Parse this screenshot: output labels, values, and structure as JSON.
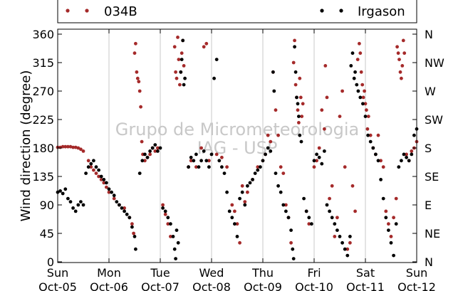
{
  "chart_data": {
    "type": "scatter",
    "title": "",
    "xlabel": "",
    "ylabel": "Wind direction (degree)",
    "ylim": [
      0,
      360
    ],
    "yticks": [
      0,
      45,
      90,
      135,
      180,
      225,
      270,
      315,
      360
    ],
    "right_ticks": [
      {
        "value": 0,
        "label": "N"
      },
      {
        "value": 45,
        "label": "NE"
      },
      {
        "value": 90,
        "label": "E"
      },
      {
        "value": 135,
        "label": "SE"
      },
      {
        "value": 180,
        "label": "S"
      },
      {
        "value": 225,
        "label": "SW"
      },
      {
        "value": 270,
        "label": "W"
      },
      {
        "value": 315,
        "label": "NW"
      },
      {
        "value": 360,
        "label": "N"
      }
    ],
    "xlim": [
      0,
      7
    ],
    "xticks": [
      {
        "day": 0,
        "weekday": "Sun",
        "date": "Oct-05"
      },
      {
        "day": 1,
        "weekday": "Mon",
        "date": "Oct-06"
      },
      {
        "day": 2,
        "weekday": "Tue",
        "date": "Oct-07"
      },
      {
        "day": 3,
        "weekday": "Wed",
        "date": "Oct-08"
      },
      {
        "day": 4,
        "weekday": "Thu",
        "date": "Oct-09"
      },
      {
        "day": 5,
        "weekday": "Fri",
        "date": "Oct-10"
      },
      {
        "day": 6,
        "weekday": "Sat",
        "date": "Oct-11"
      },
      {
        "day": 7,
        "weekday": "Sun",
        "date": "Oct-12"
      }
    ],
    "grid": "vertical",
    "legend_position": "top",
    "watermark": [
      "Grupo de Micrometeorologia",
      "IAG - USP"
    ],
    "series": [
      {
        "name": "034B",
        "color": "#a52a2a",
        "points": [
          [
            0.0,
            181
          ],
          [
            0.05,
            181
          ],
          [
            0.1,
            182
          ],
          [
            0.15,
            182
          ],
          [
            0.2,
            182
          ],
          [
            0.25,
            182
          ],
          [
            0.3,
            181
          ],
          [
            0.35,
            181
          ],
          [
            0.4,
            180
          ],
          [
            0.45,
            178
          ],
          [
            0.5,
            175
          ],
          [
            0.6,
            160
          ],
          [
            0.65,
            150
          ],
          [
            0.7,
            145
          ],
          [
            0.75,
            140
          ],
          [
            0.8,
            135
          ],
          [
            0.85,
            130
          ],
          [
            0.9,
            125
          ],
          [
            0.95,
            118
          ],
          [
            1.0,
            110
          ],
          [
            1.1,
            100
          ],
          [
            1.2,
            90
          ],
          [
            1.3,
            85
          ],
          [
            1.4,
            70
          ],
          [
            1.45,
            60
          ],
          [
            1.48,
            45
          ],
          [
            1.5,
            330
          ],
          [
            1.52,
            345
          ],
          [
            1.54,
            300
          ],
          [
            1.56,
            290
          ],
          [
            1.58,
            285
          ],
          [
            1.6,
            270
          ],
          [
            1.62,
            245
          ],
          [
            1.64,
            190
          ],
          [
            1.66,
            170
          ],
          [
            1.7,
            160
          ],
          [
            1.75,
            165
          ],
          [
            1.8,
            170
          ],
          [
            1.85,
            180
          ],
          [
            1.9,
            175
          ],
          [
            1.95,
            180
          ],
          [
            2.05,
            90
          ],
          [
            2.1,
            75
          ],
          [
            2.15,
            60
          ],
          [
            2.2,
            40
          ],
          [
            2.28,
            340
          ],
          [
            2.3,
            300
          ],
          [
            2.32,
            290
          ],
          [
            2.34,
            355
          ],
          [
            2.36,
            320
          ],
          [
            2.38,
            280
          ],
          [
            2.4,
            300
          ],
          [
            2.42,
            330
          ],
          [
            2.44,
            350
          ],
          [
            2.46,
            310
          ],
          [
            2.55,
            150
          ],
          [
            2.6,
            160
          ],
          [
            2.7,
            150
          ],
          [
            2.8,
            180
          ],
          [
            2.85,
            340
          ],
          [
            2.9,
            345
          ],
          [
            2.95,
            160
          ],
          [
            3.1,
            170
          ],
          [
            3.2,
            165
          ],
          [
            3.3,
            150
          ],
          [
            3.4,
            90
          ],
          [
            3.45,
            80
          ],
          [
            3.5,
            60
          ],
          [
            3.55,
            30
          ],
          [
            3.6,
            120
          ],
          [
            3.65,
            95
          ],
          [
            3.7,
            110
          ],
          [
            3.8,
            130
          ],
          [
            3.9,
            150
          ],
          [
            4.0,
            160
          ],
          [
            4.05,
            170
          ],
          [
            4.1,
            200
          ],
          [
            4.15,
            190
          ],
          [
            4.2,
            300
          ],
          [
            4.25,
            240
          ],
          [
            4.3,
            200
          ],
          [
            4.35,
            150
          ],
          [
            4.4,
            140
          ],
          [
            4.45,
            90
          ],
          [
            4.5,
            70
          ],
          [
            4.55,
            30
          ],
          [
            4.6,
            315
          ],
          [
            4.62,
            350
          ],
          [
            4.64,
            280
          ],
          [
            4.66,
            260
          ],
          [
            4.68,
            240
          ],
          [
            4.7,
            220
          ],
          [
            4.72,
            290
          ],
          [
            4.74,
            260
          ],
          [
            4.76,
            230
          ],
          [
            4.78,
            250
          ],
          [
            4.85,
            80
          ],
          [
            4.9,
            60
          ],
          [
            5.0,
            150
          ],
          [
            5.05,
            160
          ],
          [
            5.1,
            180
          ],
          [
            5.15,
            240
          ],
          [
            5.2,
            210
          ],
          [
            5.22,
            310
          ],
          [
            5.25,
            260
          ],
          [
            5.3,
            100
          ],
          [
            5.35,
            120
          ],
          [
            5.4,
            40
          ],
          [
            5.45,
            70
          ],
          [
            5.5,
            230
          ],
          [
            5.55,
            270
          ],
          [
            5.6,
            150
          ],
          [
            5.65,
            20
          ],
          [
            5.7,
            30
          ],
          [
            5.75,
            120
          ],
          [
            5.8,
            80
          ],
          [
            5.85,
            320
          ],
          [
            5.88,
            345
          ],
          [
            5.9,
            330
          ],
          [
            5.92,
            300
          ],
          [
            5.94,
            280
          ],
          [
            5.96,
            260
          ],
          [
            5.98,
            270
          ],
          [
            6.0,
            250
          ],
          [
            6.02,
            240
          ],
          [
            6.04,
            210
          ],
          [
            6.06,
            230
          ],
          [
            6.1,
            200
          ],
          [
            6.15,
            180
          ],
          [
            6.2,
            170
          ],
          [
            6.25,
            200
          ],
          [
            6.3,
            160
          ],
          [
            6.35,
            150
          ],
          [
            6.4,
            80
          ],
          [
            6.45,
            60
          ],
          [
            6.5,
            40
          ],
          [
            6.55,
            70
          ],
          [
            6.6,
            100
          ],
          [
            6.62,
            340
          ],
          [
            6.64,
            330
          ],
          [
            6.66,
            320
          ],
          [
            6.68,
            300
          ],
          [
            6.7,
            290
          ],
          [
            6.72,
            310
          ],
          [
            6.74,
            350
          ],
          [
            6.76,
            330
          ],
          [
            6.8,
            170
          ],
          [
            6.85,
            160
          ],
          [
            6.9,
            175
          ],
          [
            6.95,
            180
          ],
          [
            7.0,
            190
          ]
        ]
      },
      {
        "name": "Irgason",
        "color": "#000000",
        "points": [
          [
            0.0,
            110
          ],
          [
            0.05,
            112
          ],
          [
            0.1,
            108
          ],
          [
            0.15,
            115
          ],
          [
            0.2,
            100
          ],
          [
            0.25,
            95
          ],
          [
            0.3,
            85
          ],
          [
            0.35,
            80
          ],
          [
            0.4,
            90
          ],
          [
            0.45,
            95
          ],
          [
            0.5,
            90
          ],
          [
            0.55,
            140
          ],
          [
            0.6,
            150
          ],
          [
            0.65,
            155
          ],
          [
            0.7,
            160
          ],
          [
            0.75,
            150
          ],
          [
            0.8,
            145
          ],
          [
            0.85,
            135
          ],
          [
            0.9,
            130
          ],
          [
            0.95,
            125
          ],
          [
            1.0,
            115
          ],
          [
            1.05,
            110
          ],
          [
            1.1,
            105
          ],
          [
            1.15,
            95
          ],
          [
            1.2,
            90
          ],
          [
            1.25,
            85
          ],
          [
            1.3,
            80
          ],
          [
            1.35,
            75
          ],
          [
            1.4,
            70
          ],
          [
            1.45,
            55
          ],
          [
            1.5,
            40
          ],
          [
            1.52,
            20
          ],
          [
            1.6,
            140
          ],
          [
            1.65,
            160
          ],
          [
            1.7,
            170
          ],
          [
            1.75,
            165
          ],
          [
            1.8,
            175
          ],
          [
            1.85,
            180
          ],
          [
            1.9,
            185
          ],
          [
            1.95,
            175
          ],
          [
            2.0,
            180
          ],
          [
            2.05,
            85
          ],
          [
            2.1,
            80
          ],
          [
            2.15,
            70
          ],
          [
            2.2,
            60
          ],
          [
            2.25,
            40
          ],
          [
            2.28,
            20
          ],
          [
            2.3,
            5
          ],
          [
            2.32,
            50
          ],
          [
            2.35,
            30
          ],
          [
            2.4,
            300
          ],
          [
            2.42,
            320
          ],
          [
            2.44,
            350
          ],
          [
            2.46,
            280
          ],
          [
            2.48,
            290
          ],
          [
            2.55,
            150
          ],
          [
            2.6,
            165
          ],
          [
            2.65,
            160
          ],
          [
            2.7,
            170
          ],
          [
            2.75,
            150
          ],
          [
            2.8,
            160
          ],
          [
            2.85,
            175
          ],
          [
            2.9,
            160
          ],
          [
            2.95,
            150
          ],
          [
            3.0,
            170
          ],
          [
            3.05,
            290
          ],
          [
            3.1,
            320
          ],
          [
            3.15,
            160
          ],
          [
            3.2,
            150
          ],
          [
            3.25,
            140
          ],
          [
            3.3,
            110
          ],
          [
            3.35,
            80
          ],
          [
            3.4,
            70
          ],
          [
            3.45,
            60
          ],
          [
            3.5,
            40
          ],
          [
            3.55,
            100
          ],
          [
            3.6,
            110
          ],
          [
            3.65,
            90
          ],
          [
            3.7,
            120
          ],
          [
            3.75,
            125
          ],
          [
            3.8,
            130
          ],
          [
            3.85,
            140
          ],
          [
            3.9,
            145
          ],
          [
            3.95,
            150
          ],
          [
            4.0,
            160
          ],
          [
            4.05,
            170
          ],
          [
            4.1,
            180
          ],
          [
            4.15,
            175
          ],
          [
            4.2,
            300
          ],
          [
            4.22,
            270
          ],
          [
            4.25,
            140
          ],
          [
            4.3,
            120
          ],
          [
            4.35,
            110
          ],
          [
            4.4,
            90
          ],
          [
            4.45,
            80
          ],
          [
            4.5,
            70
          ],
          [
            4.55,
            50
          ],
          [
            4.58,
            20
          ],
          [
            4.6,
            5
          ],
          [
            4.62,
            340
          ],
          [
            4.64,
            300
          ],
          [
            4.66,
            260
          ],
          [
            4.68,
            250
          ],
          [
            4.7,
            230
          ],
          [
            4.72,
            200
          ],
          [
            4.75,
            190
          ],
          [
            4.8,
            100
          ],
          [
            4.85,
            80
          ],
          [
            4.9,
            70
          ],
          [
            4.95,
            60
          ],
          [
            5.0,
            160
          ],
          [
            5.05,
            170
          ],
          [
            5.1,
            165
          ],
          [
            5.15,
            155
          ],
          [
            5.2,
            175
          ],
          [
            5.25,
            90
          ],
          [
            5.3,
            80
          ],
          [
            5.35,
            70
          ],
          [
            5.4,
            60
          ],
          [
            5.45,
            50
          ],
          [
            5.5,
            40
          ],
          [
            5.55,
            30
          ],
          [
            5.6,
            20
          ],
          [
            5.65,
            10
          ],
          [
            5.7,
            40
          ],
          [
            5.72,
            310
          ],
          [
            5.75,
            330
          ],
          [
            5.78,
            290
          ],
          [
            5.8,
            300
          ],
          [
            5.83,
            280
          ],
          [
            5.86,
            270
          ],
          [
            5.9,
            260
          ],
          [
            5.95,
            250
          ],
          [
            6.0,
            230
          ],
          [
            6.05,
            200
          ],
          [
            6.1,
            190
          ],
          [
            6.15,
            180
          ],
          [
            6.2,
            170
          ],
          [
            6.25,
            160
          ],
          [
            6.3,
            130
          ],
          [
            6.35,
            100
          ],
          [
            6.4,
            70
          ],
          [
            6.45,
            50
          ],
          [
            6.5,
            30
          ],
          [
            6.55,
            10
          ],
          [
            6.6,
            60
          ],
          [
            6.65,
            150
          ],
          [
            6.7,
            160
          ],
          [
            6.75,
            170
          ],
          [
            6.8,
            165
          ],
          [
            6.85,
            160
          ],
          [
            6.9,
            170
          ],
          [
            6.95,
            200
          ],
          [
            7.0,
            210
          ]
        ]
      }
    ]
  }
}
